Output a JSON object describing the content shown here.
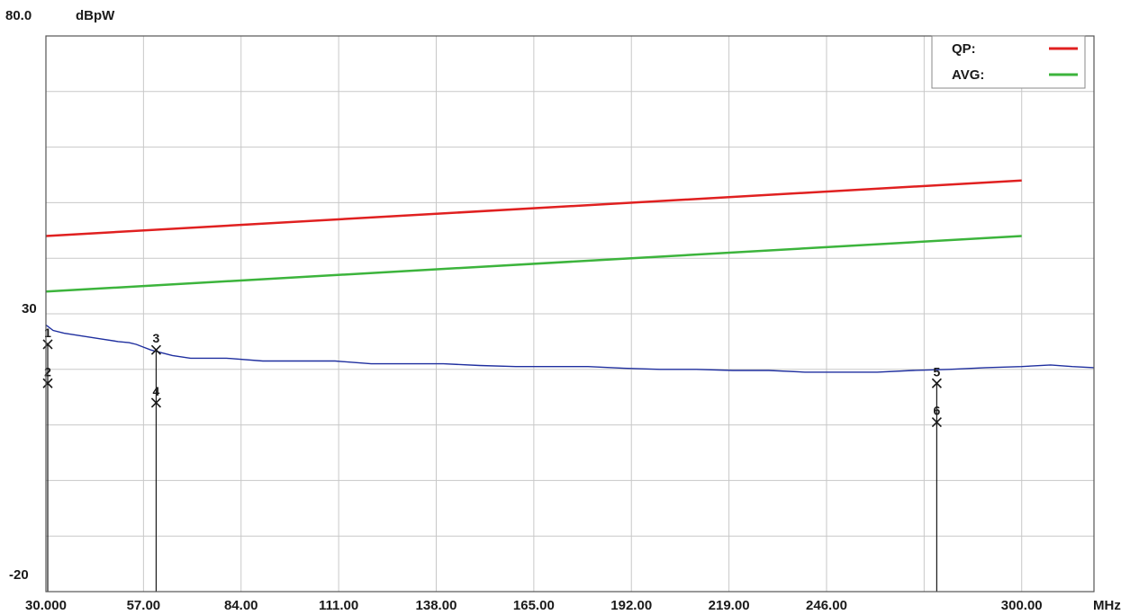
{
  "chart_data": {
    "type": "line",
    "ylabel": "dBpW",
    "xunit": "MHz",
    "xlim": [
      30,
      320
    ],
    "ylim": [
      -20,
      80
    ],
    "x_ticks": [
      "30.000",
      "57.00",
      "84.00",
      "111.00",
      "138.00",
      "165.00",
      "192.00",
      "219.00",
      "246.00",
      "300.00"
    ],
    "x_tick_values": [
      30,
      57,
      84,
      111,
      138,
      165,
      192,
      219,
      246,
      300
    ],
    "y_ticks": [
      "80.0",
      "30",
      "-20"
    ],
    "y_tick_values": [
      80,
      30,
      -20
    ],
    "y_grid_step": 10,
    "x_grid_step": 27,
    "grid": true,
    "legend_position": "top-right",
    "colors": {
      "qp": "#e02020",
      "avg": "#3cb43c",
      "trace": "#1f2f9f",
      "grid": "#c8c8c8"
    },
    "series": [
      {
        "name": "QP",
        "key": "qp",
        "x": [
          30,
          300
        ],
        "values": [
          44,
          54
        ]
      },
      {
        "name": "AVG",
        "key": "avg",
        "x": [
          30,
          300
        ],
        "values": [
          34,
          44
        ]
      },
      {
        "key": "trace",
        "x": [
          30,
          32,
          35,
          40,
          45,
          50,
          53,
          55,
          57,
          59,
          62,
          65,
          70,
          80,
          90,
          100,
          110,
          120,
          130,
          140,
          150,
          160,
          170,
          180,
          190,
          200,
          210,
          220,
          230,
          240,
          250,
          260,
          270,
          280,
          290,
          300,
          308,
          314,
          320
        ],
        "values": [
          28,
          27,
          26.5,
          26,
          25.5,
          25,
          24.8,
          24.5,
          24,
          23.5,
          23,
          22.5,
          22,
          22,
          21.5,
          21.5,
          21.5,
          21,
          21,
          21,
          20.7,
          20.5,
          20.5,
          20.5,
          20.2,
          20,
          20,
          19.8,
          19.8,
          19.5,
          19.5,
          19.5,
          19.8,
          20,
          20.3,
          20.5,
          20.8,
          20.5,
          20.3
        ]
      }
    ],
    "markers": [
      {
        "label": "1",
        "freq": 30.5,
        "level": 24.5
      },
      {
        "label": "2",
        "freq": 30.5,
        "level": 17.5
      },
      {
        "label": "3",
        "freq": 60.5,
        "level": 23.5
      },
      {
        "label": "4",
        "freq": 60.5,
        "level": 14.0
      },
      {
        "label": "5",
        "freq": 276.5,
        "level": 17.5
      },
      {
        "label": "6",
        "freq": 276.5,
        "level": 10.5
      }
    ],
    "legend": [
      {
        "label": "QP:",
        "color": "#e02020"
      },
      {
        "label": "AVG:",
        "color": "#3cb43c"
      }
    ]
  }
}
